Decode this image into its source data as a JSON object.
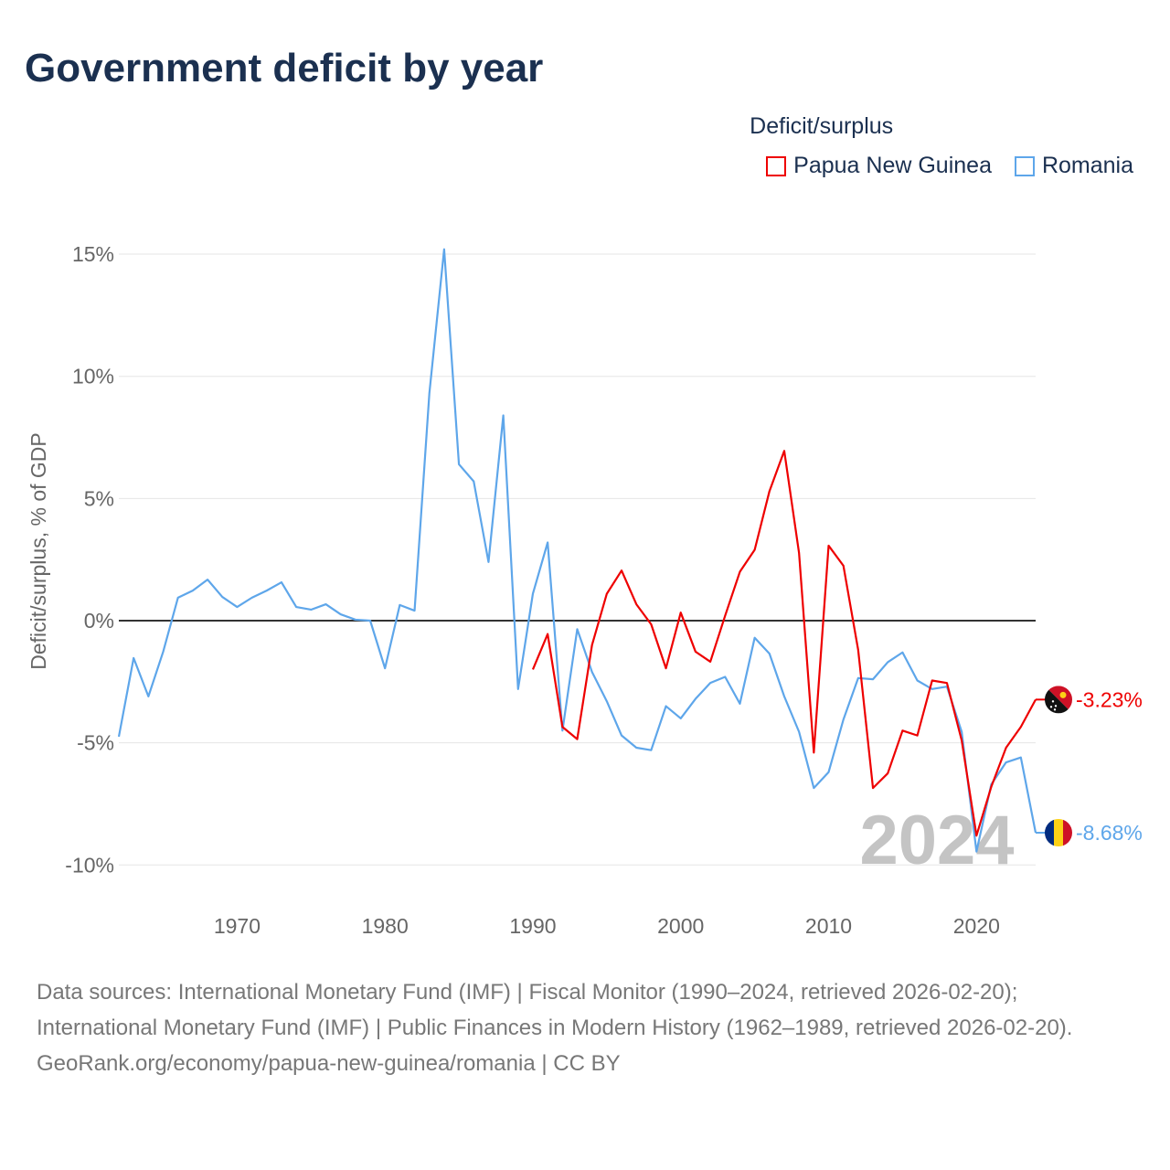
{
  "title": "Government deficit by year",
  "legend": {
    "title": "Deficit/surplus",
    "items": [
      {
        "name": "Papua New Guinea",
        "color": "#ee0000"
      },
      {
        "name": "Romania",
        "color": "#5ea6ea"
      }
    ]
  },
  "footer": {
    "sources": "Data sources: International Monetary Fund (IMF) | Fiscal Monitor (1990–2024, retrieved 2026-02-20); International Monetary Fund (IMF) | Public Finances in Modern History (1962–1989, retrieved 2026-02-20).",
    "credit": "GeoRank.org/economy/papua-new-guinea/romania | CC BY"
  },
  "chart_data": {
    "type": "line",
    "title": "Government deficit by year",
    "ylabel": "Deficit/surplus, % of GDP",
    "xlabel": "",
    "xlim": [
      1962,
      2024
    ],
    "ylim": [
      -10,
      15
    ],
    "yticks": [
      {
        "v": 15,
        "label": "15%"
      },
      {
        "v": 10,
        "label": "10%"
      },
      {
        "v": 5,
        "label": "5%"
      },
      {
        "v": 0,
        "label": "0%"
      },
      {
        "v": -5,
        "label": "-5%"
      },
      {
        "v": -10,
        "label": "-10%"
      }
    ],
    "xticks": [
      {
        "v": 1970,
        "label": "1970"
      },
      {
        "v": 1980,
        "label": "1980"
      },
      {
        "v": 1990,
        "label": "1990"
      },
      {
        "v": 2000,
        "label": "2000"
      },
      {
        "v": 2010,
        "label": "2010"
      },
      {
        "v": 2020,
        "label": "2020"
      }
    ],
    "year_watermark": "2024",
    "series": [
      {
        "name": "Romania",
        "color": "#5ea6ea",
        "end_label": "-8.68%",
        "start": 1962,
        "values": [
          -4.75,
          -1.53,
          -3.1,
          -1.27,
          0.94,
          1.23,
          1.68,
          0.97,
          0.56,
          0.94,
          1.23,
          1.57,
          0.56,
          0.45,
          0.67,
          0.26,
          0.04,
          0,
          -1.95,
          0.64,
          0.41,
          9.3,
          15.2,
          6.4,
          5.7,
          2.4,
          8.4,
          -2.8,
          1.1,
          3.2,
          -4.5,
          -0.35,
          -2.1,
          -3.3,
          -4.7,
          -5.2,
          -5.3,
          -3.5,
          -4.0,
          -3.2,
          -2.55,
          -2.3,
          -3.4,
          -0.7,
          -1.35,
          -3.1,
          -4.55,
          -6.85,
          -6.2,
          -4.05,
          -2.35,
          -2.4,
          -1.7,
          -1.3,
          -2.45,
          -2.8,
          -2.7,
          -4.55,
          -9.45,
          -6.7,
          -5.8,
          -5.6,
          -8.68
        ]
      },
      {
        "name": "Papua New Guinea",
        "color": "#ee0000",
        "end_label": "-3.23%",
        "start": 1990,
        "values": [
          -2.0,
          -0.55,
          -4.35,
          -4.85,
          -1.0,
          1.1,
          2.05,
          0.67,
          -0.15,
          -1.95,
          0.33,
          -1.27,
          -1.68,
          0.2,
          2.0,
          2.9,
          5.3,
          6.95,
          2.77,
          -5.4,
          3.07,
          2.25,
          -1.2,
          -6.85,
          -6.25,
          -4.5,
          -4.7,
          -2.45,
          -2.55,
          -4.9,
          -8.8,
          -6.8,
          -5.2,
          -4.35,
          -3.23
        ]
      }
    ]
  }
}
